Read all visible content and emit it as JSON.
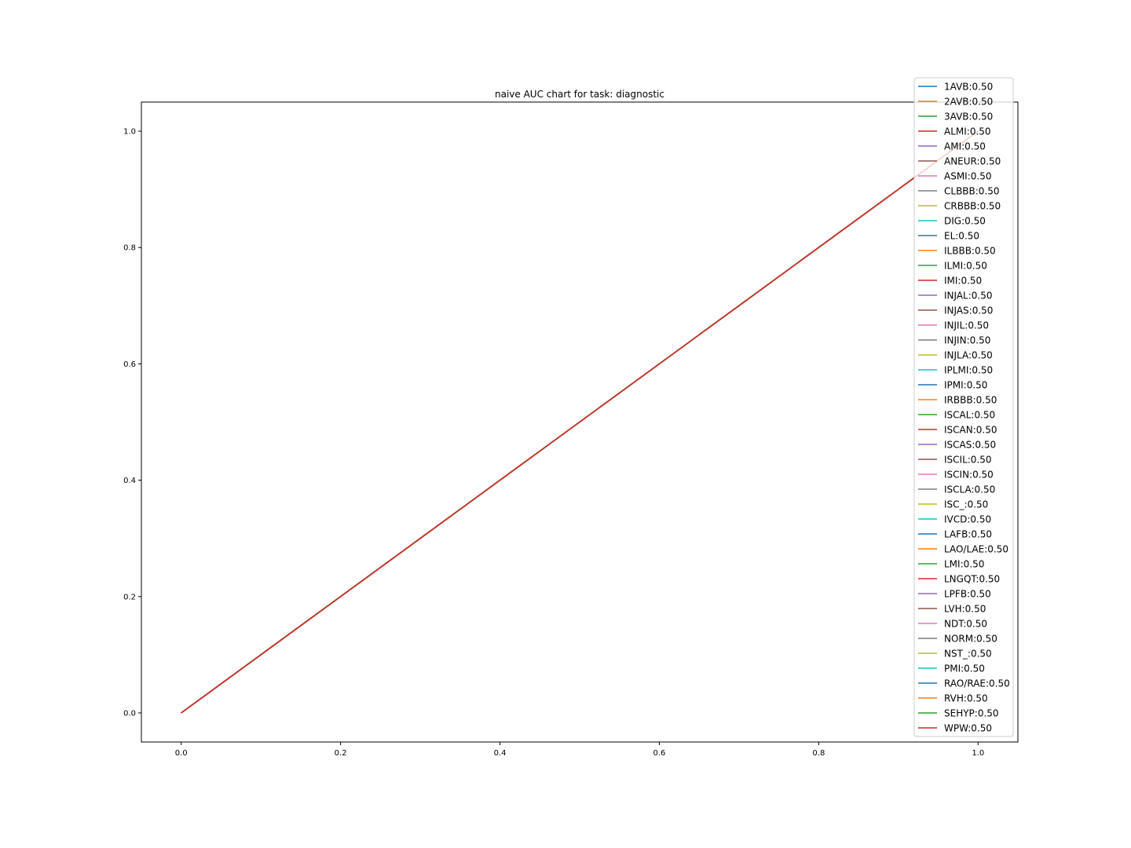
{
  "chart_data": {
    "type": "line",
    "title": "naive AUC chart for task: diagnostic",
    "xlabel": "",
    "ylabel": "",
    "xlim": [
      -0.05,
      1.05
    ],
    "ylim": [
      -0.05,
      1.05
    ],
    "xticks": [
      0.0,
      0.2,
      0.4,
      0.6,
      0.8,
      1.0
    ],
    "yticks": [
      0.0,
      0.2,
      0.4,
      0.6,
      0.8,
      1.0
    ],
    "xtick_labels": [
      "0.0",
      "0.2",
      "0.4",
      "0.6",
      "0.8",
      "1.0"
    ],
    "ytick_labels": [
      "0.0",
      "0.2",
      "0.4",
      "0.6",
      "0.8",
      "1.0"
    ],
    "grid": false,
    "legend_position": "top-right",
    "x": [
      0.0,
      1.0
    ],
    "palette": [
      "#1f77b4",
      "#ff7f0e",
      "#2ca02c",
      "#d62728",
      "#9467bd",
      "#8c564b",
      "#e377c2",
      "#7f7f7f",
      "#bcbd22",
      "#17becf"
    ],
    "series": [
      {
        "name": "1AVB:0.50",
        "values": [
          0.0,
          1.0
        ]
      },
      {
        "name": "2AVB:0.50",
        "values": [
          0.0,
          1.0
        ]
      },
      {
        "name": "3AVB:0.50",
        "values": [
          0.0,
          1.0
        ]
      },
      {
        "name": "ALMI:0.50",
        "values": [
          0.0,
          1.0
        ]
      },
      {
        "name": "AMI:0.50",
        "values": [
          0.0,
          1.0
        ]
      },
      {
        "name": "ANEUR:0.50",
        "values": [
          0.0,
          1.0
        ]
      },
      {
        "name": "ASMI:0.50",
        "values": [
          0.0,
          1.0
        ]
      },
      {
        "name": "CLBBB:0.50",
        "values": [
          0.0,
          1.0
        ]
      },
      {
        "name": "CRBBB:0.50",
        "values": [
          0.0,
          1.0
        ]
      },
      {
        "name": "DIG:0.50",
        "values": [
          0.0,
          1.0
        ]
      },
      {
        "name": "EL:0.50",
        "values": [
          0.0,
          1.0
        ]
      },
      {
        "name": "ILBBB:0.50",
        "values": [
          0.0,
          1.0
        ]
      },
      {
        "name": "ILMI:0.50",
        "values": [
          0.0,
          1.0
        ]
      },
      {
        "name": "IMI:0.50",
        "values": [
          0.0,
          1.0
        ]
      },
      {
        "name": "INJAL:0.50",
        "values": [
          0.0,
          1.0
        ]
      },
      {
        "name": "INJAS:0.50",
        "values": [
          0.0,
          1.0
        ]
      },
      {
        "name": "INJIL:0.50",
        "values": [
          0.0,
          1.0
        ]
      },
      {
        "name": "INJIN:0.50",
        "values": [
          0.0,
          1.0
        ]
      },
      {
        "name": "INJLA:0.50",
        "values": [
          0.0,
          1.0
        ]
      },
      {
        "name": "IPLMI:0.50",
        "values": [
          0.0,
          1.0
        ]
      },
      {
        "name": "IPMI:0.50",
        "values": [
          0.0,
          1.0
        ]
      },
      {
        "name": "IRBBB:0.50",
        "values": [
          0.0,
          1.0
        ]
      },
      {
        "name": "ISCAL:0.50",
        "values": [
          0.0,
          1.0
        ]
      },
      {
        "name": "ISCAN:0.50",
        "values": [
          0.0,
          1.0
        ]
      },
      {
        "name": "ISCAS:0.50",
        "values": [
          0.0,
          1.0
        ]
      },
      {
        "name": "ISCIL:0.50",
        "values": [
          0.0,
          1.0
        ]
      },
      {
        "name": "ISCIN:0.50",
        "values": [
          0.0,
          1.0
        ]
      },
      {
        "name": "ISCLA:0.50",
        "values": [
          0.0,
          1.0
        ]
      },
      {
        "name": "ISC_:0.50",
        "values": [
          0.0,
          1.0
        ]
      },
      {
        "name": "IVCD:0.50",
        "values": [
          0.0,
          1.0
        ]
      },
      {
        "name": "LAFB:0.50",
        "values": [
          0.0,
          1.0
        ]
      },
      {
        "name": "LAO/LAE:0.50",
        "values": [
          0.0,
          1.0
        ]
      },
      {
        "name": "LMI:0.50",
        "values": [
          0.0,
          1.0
        ]
      },
      {
        "name": "LNGQT:0.50",
        "values": [
          0.0,
          1.0
        ]
      },
      {
        "name": "LPFB:0.50",
        "values": [
          0.0,
          1.0
        ]
      },
      {
        "name": "LVH:0.50",
        "values": [
          0.0,
          1.0
        ]
      },
      {
        "name": "NDT:0.50",
        "values": [
          0.0,
          1.0
        ]
      },
      {
        "name": "NORM:0.50",
        "values": [
          0.0,
          1.0
        ]
      },
      {
        "name": "NST_:0.50",
        "values": [
          0.0,
          1.0
        ]
      },
      {
        "name": "PMI:0.50",
        "values": [
          0.0,
          1.0
        ]
      },
      {
        "name": "RAO/RAE:0.50",
        "values": [
          0.0,
          1.0
        ]
      },
      {
        "name": "RVH:0.50",
        "values": [
          0.0,
          1.0
        ]
      },
      {
        "name": "SEHYP:0.50",
        "values": [
          0.0,
          1.0
        ]
      },
      {
        "name": "WPW:0.50",
        "values": [
          0.0,
          1.0
        ]
      }
    ]
  }
}
